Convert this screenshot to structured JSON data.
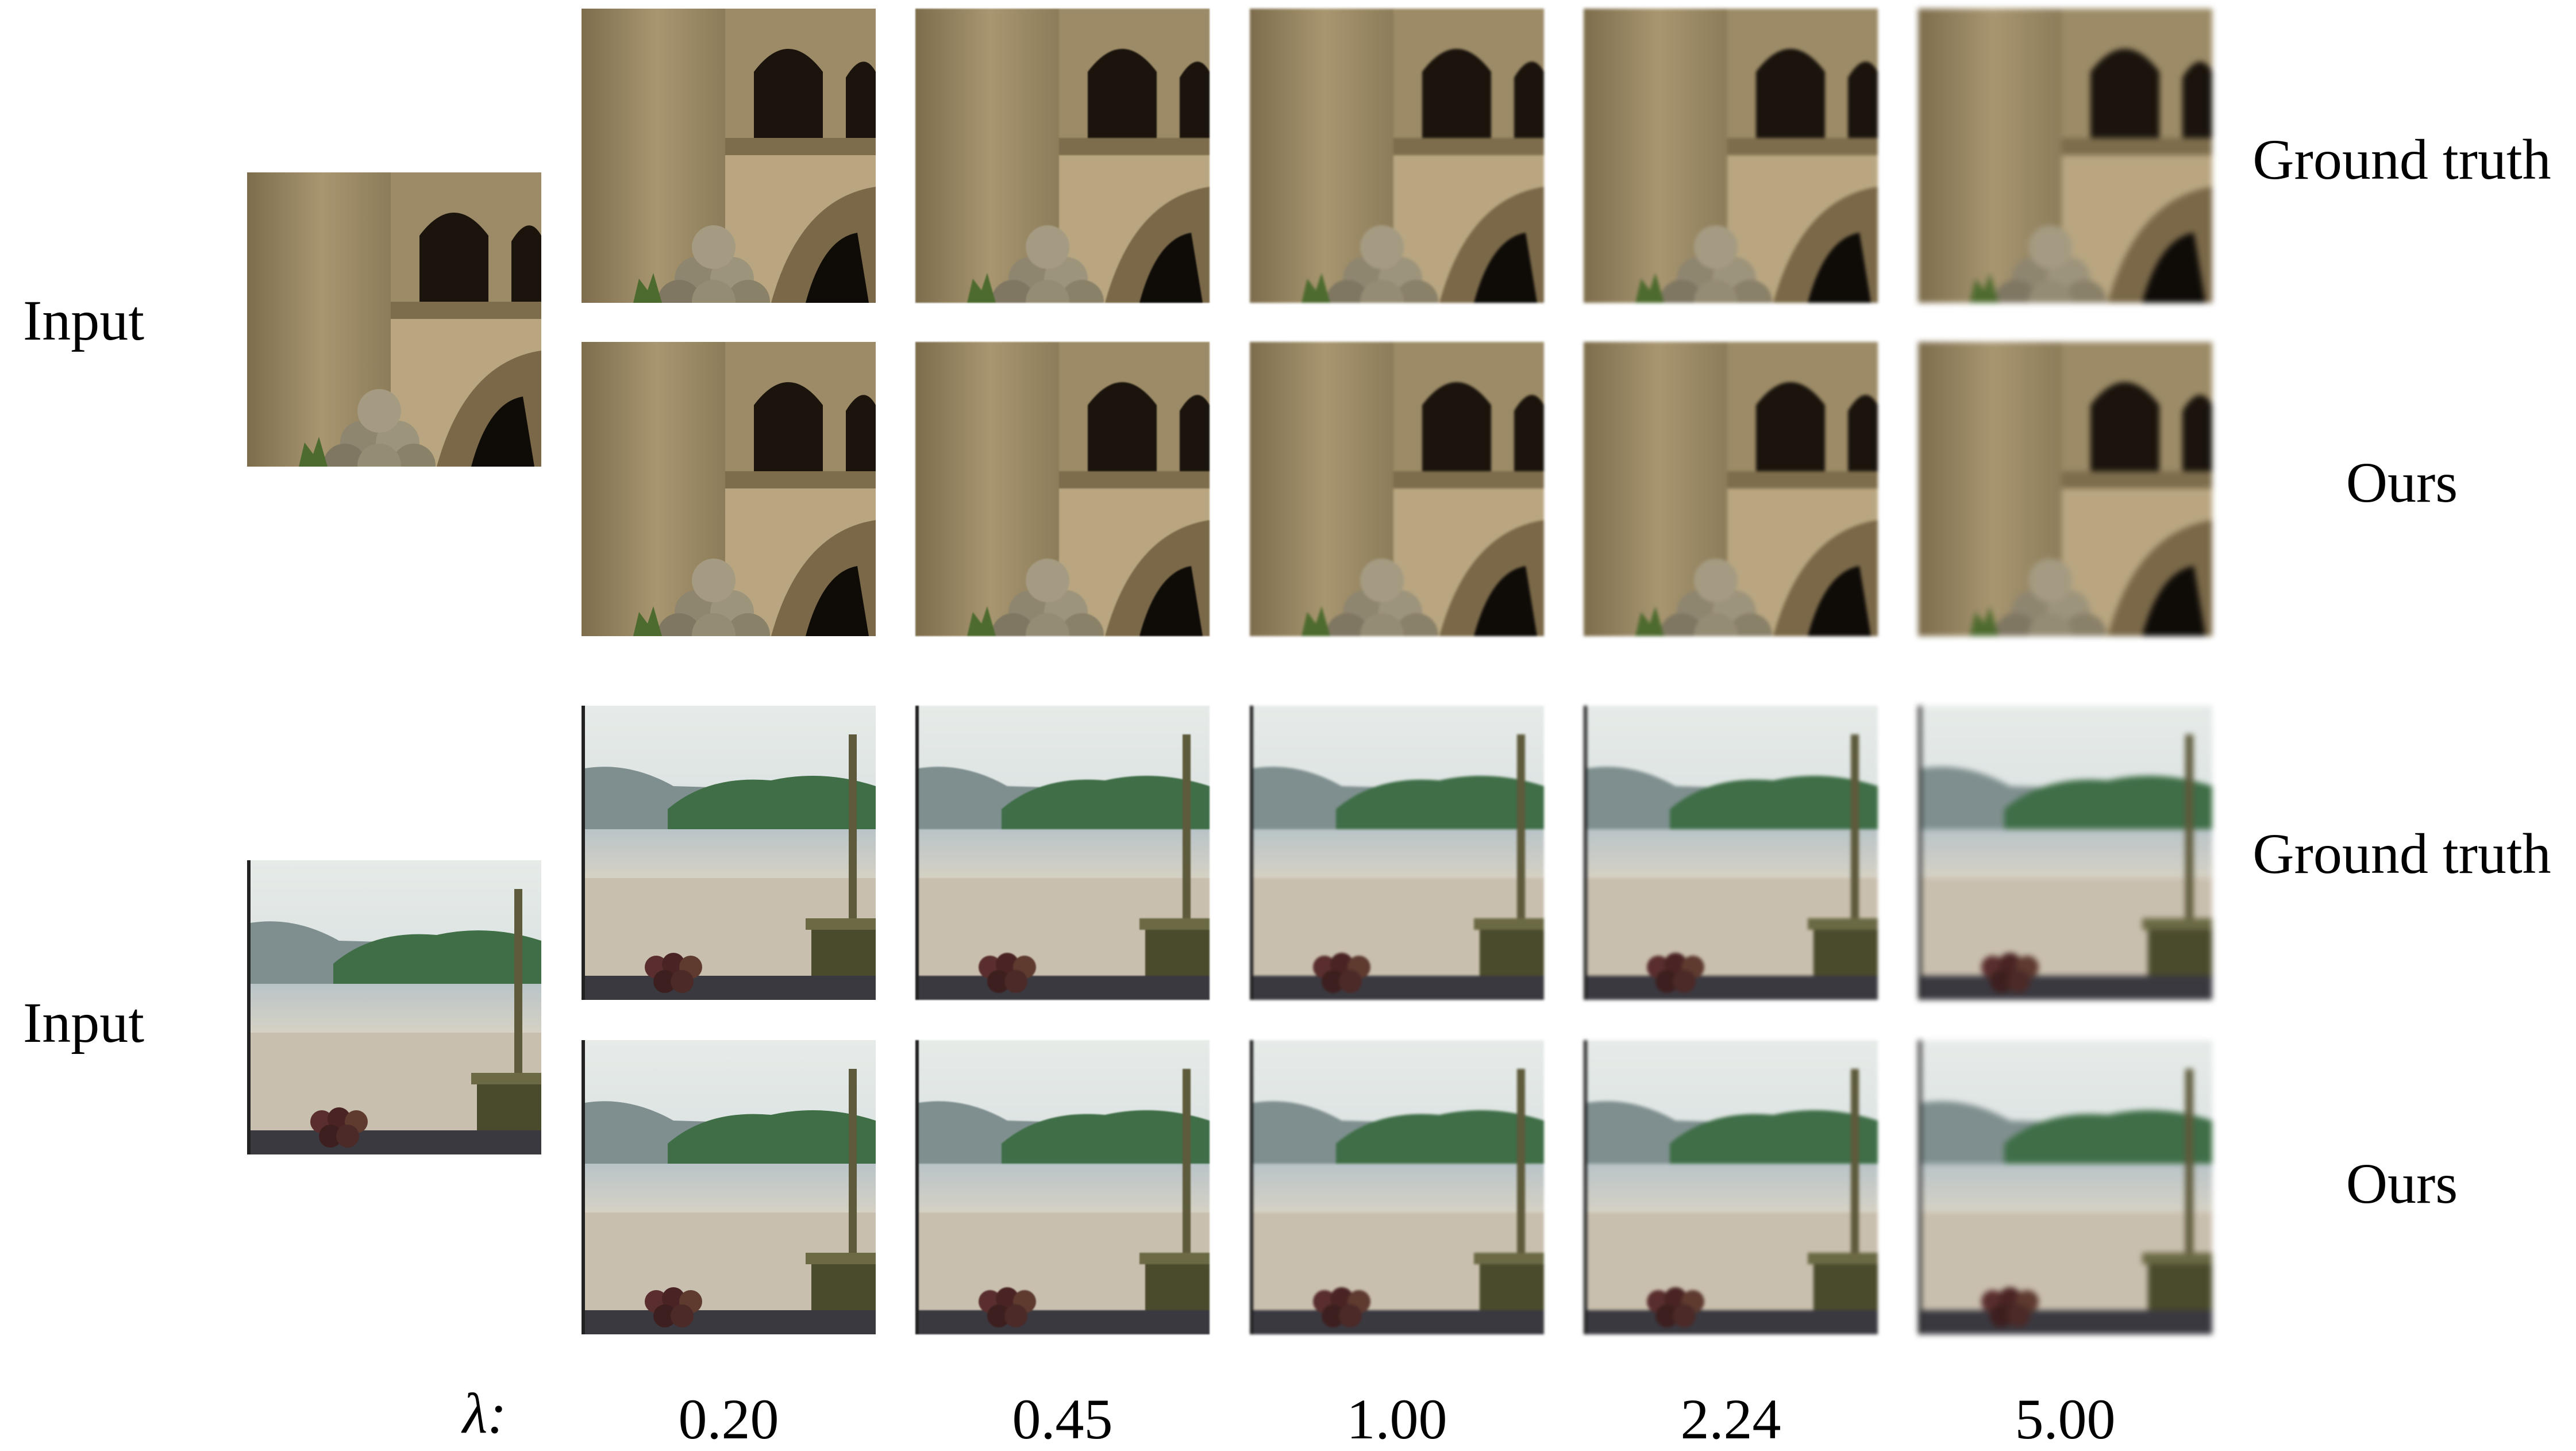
{
  "figure": {
    "rows": [
      {
        "scene": "castle",
        "input_label": "Input",
        "gt_label": "Ground truth",
        "ours_label": "Ours"
      },
      {
        "scene": "lake",
        "input_label": "Input",
        "gt_label": "Ground truth",
        "ours_label": "Ours"
      }
    ],
    "lambda_symbol": "λ:",
    "lambda_values": [
      "0.20",
      "0.45",
      "1.00",
      "2.24",
      "5.00"
    ]
  }
}
